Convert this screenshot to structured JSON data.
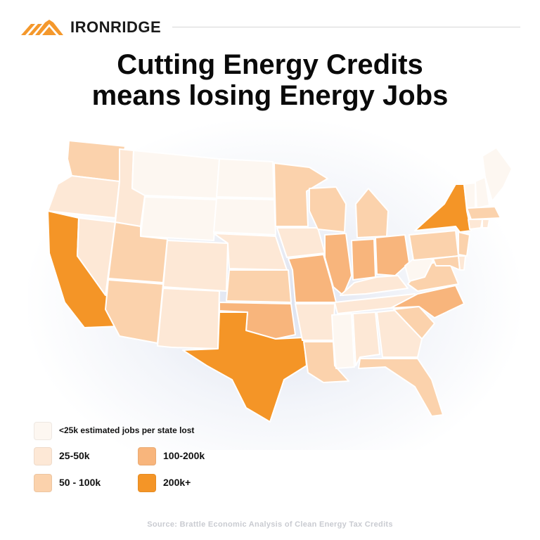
{
  "brand": {
    "name": "IRONRIDGE",
    "logo_icon": "mountain-stripes-logo",
    "accent": "#f4982c"
  },
  "title": {
    "line1": "Cutting Energy Credits",
    "line2": "means losing Energy Jobs"
  },
  "legend": {
    "lt25": {
      "label": "<25k estimated jobs per state lost",
      "color": "#fdf7f1"
    },
    "r25_50": {
      "label": "25-50k",
      "color": "#fde8d6"
    },
    "r50_100": {
      "label": "50 - 100k",
      "color": "#fbd2ac"
    },
    "r100_200": {
      "label": "100-200k",
      "color": "#f8b57c"
    },
    "r200": {
      "label": "200k+",
      "color": "#f49527"
    }
  },
  "states_by_category": {
    "lt25": [
      "Montana",
      "North Dakota",
      "South Dakota",
      "Wyoming",
      "Mississippi",
      "West Virginia",
      "Vermont",
      "Maine",
      "New Hampshire"
    ],
    "r25_50": [
      "Oregon",
      "Idaho",
      "Nevada",
      "Colorado",
      "New Mexico",
      "Nebraska",
      "Iowa",
      "Arkansas",
      "Kentucky",
      "Tennessee",
      "Alabama",
      "Georgia",
      "Connecticut",
      "Rhode Island",
      "Delaware"
    ],
    "r50_100": [
      "Washington",
      "Arizona",
      "Utah",
      "Kansas",
      "Minnesota",
      "Wisconsin",
      "Michigan",
      "Louisiana",
      "South Carolina",
      "Virginia",
      "Pennsylvania",
      "New Jersey",
      "Maryland",
      "Florida",
      "Massachusetts"
    ],
    "r100_200": [
      "Oklahoma",
      "Missouri",
      "Illinois",
      "Indiana",
      "Ohio",
      "North Carolina"
    ],
    "r200": [
      "California",
      "Texas",
      "New York"
    ]
  },
  "source": "Source: Brattle Economic Analysis of Clean Energy Tax Credits"
}
